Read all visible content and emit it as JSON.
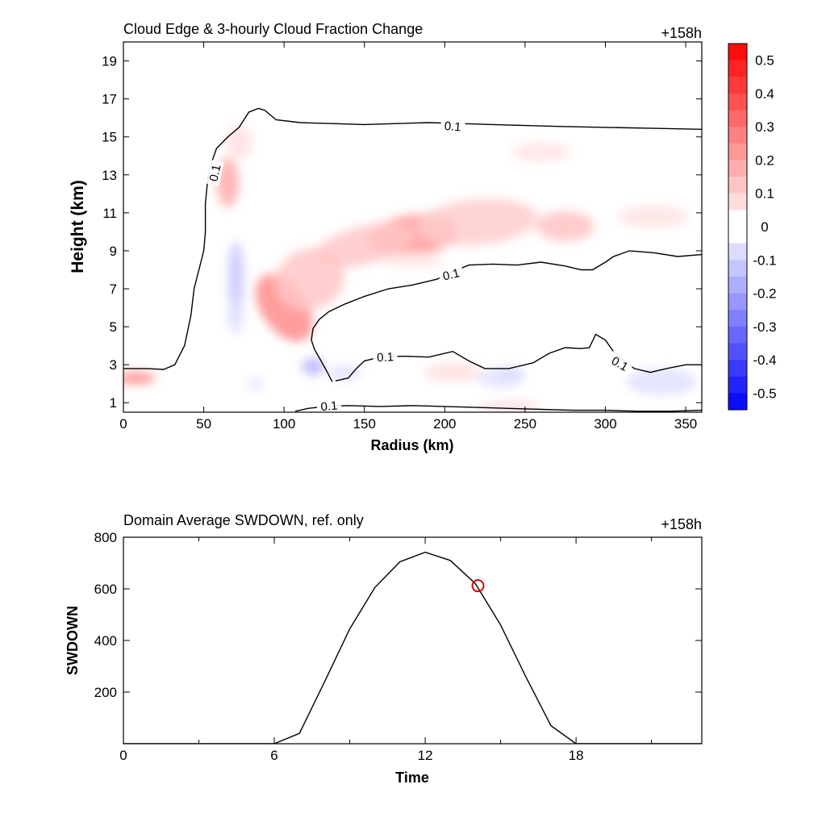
{
  "chart_data": [
    {
      "type": "heatmap",
      "title": "Cloud Edge & 3-hourly Cloud Fraction Change",
      "time_label": "+158h",
      "xlabel": "Radius (km)",
      "ylabel": "Height (km)",
      "xlim": [
        0,
        360
      ],
      "ylim": [
        0.5,
        20
      ],
      "x_ticks": [
        0,
        50,
        100,
        150,
        200,
        250,
        300,
        350
      ],
      "y_ticks": [
        1,
        3,
        5,
        7,
        9,
        11,
        13,
        15,
        17,
        19
      ],
      "colorbar": {
        "min": -0.55,
        "max": 0.55,
        "step": 0.05,
        "ticks": [
          0.5,
          0.4,
          0.3,
          0.2,
          0.1,
          0,
          -0.1,
          -0.2,
          -0.3,
          -0.4,
          -0.5
        ],
        "tick_labels": [
          "0.5",
          "0.4",
          "0.3",
          "0.2",
          "0.1",
          "0",
          "-0.1",
          "-0.2",
          "-0.3",
          "-0.4",
          "-0.5"
        ],
        "pos_color": "#ff0000",
        "neg_color": "#0000ff"
      },
      "contour_level_label": "0.1",
      "contours": [
        {
          "name": "upper-envelope",
          "points": [
            [
              0,
              2.8
            ],
            [
              15,
              2.8
            ],
            [
              25,
              2.75
            ],
            [
              32,
              3.0
            ],
            [
              38,
              4.0
            ],
            [
              42,
              5.6
            ],
            [
              44,
              7.0
            ],
            [
              47,
              8.0
            ],
            [
              50,
              9.0
            ],
            [
              51,
              10.0
            ],
            [
              51,
              11.5
            ],
            [
              53,
              13.2
            ],
            [
              58,
              14.4
            ],
            [
              65,
              15.0
            ],
            [
              72,
              15.5
            ],
            [
              78,
              16.3
            ],
            [
              84,
              16.5
            ],
            [
              88,
              16.4
            ],
            [
              95,
              15.9
            ],
            [
              110,
              15.75
            ],
            [
              130,
              15.7
            ],
            [
              150,
              15.65
            ],
            [
              170,
              15.7
            ],
            [
              190,
              15.75
            ],
            [
              210,
              15.7
            ],
            [
              230,
              15.65
            ],
            [
              250,
              15.6
            ],
            [
              270,
              15.55
            ],
            [
              300,
              15.5
            ],
            [
              330,
              15.45
            ],
            [
              360,
              15.4
            ]
          ]
        },
        {
          "name": "inner-outflow",
          "points": [
            [
              130,
              2.1
            ],
            [
              127,
              2.6
            ],
            [
              123,
              3.2
            ],
            [
              119,
              3.8
            ],
            [
              117,
              4.3
            ],
            [
              118,
              4.9
            ],
            [
              122,
              5.4
            ],
            [
              128,
              5.8
            ],
            [
              138,
              6.2
            ],
            [
              150,
              6.6
            ],
            [
              165,
              7.0
            ],
            [
              180,
              7.2
            ],
            [
              195,
              7.5
            ],
            [
              205,
              7.9
            ],
            [
              215,
              8.25
            ],
            [
              230,
              8.3
            ],
            [
              245,
              8.25
            ],
            [
              260,
              8.4
            ],
            [
              275,
              8.2
            ],
            [
              285,
              8.0
            ],
            [
              292,
              8.0
            ],
            [
              300,
              8.4
            ],
            [
              305,
              8.7
            ],
            [
              315,
              9.0
            ],
            [
              330,
              8.9
            ],
            [
              345,
              8.7
            ],
            [
              360,
              8.8
            ]
          ]
        },
        {
          "name": "lower-layer",
          "points": [
            [
              132,
              2.15
            ],
            [
              140,
              2.3
            ],
            [
              145,
              2.8
            ],
            [
              150,
              3.2
            ],
            [
              160,
              3.4
            ],
            [
              175,
              3.45
            ],
            [
              190,
              3.4
            ],
            [
              205,
              3.7
            ],
            [
              215,
              3.2
            ],
            [
              225,
              2.8
            ],
            [
              240,
              2.8
            ],
            [
              255,
              3.1
            ],
            [
              265,
              3.6
            ],
            [
              275,
              3.9
            ],
            [
              285,
              3.85
            ],
            [
              290,
              3.9
            ],
            [
              294,
              4.6
            ],
            [
              300,
              4.3
            ],
            [
              305,
              3.7
            ],
            [
              312,
              3.2
            ],
            [
              318,
              2.8
            ],
            [
              328,
              2.6
            ],
            [
              338,
              2.8
            ],
            [
              350,
              3.0
            ],
            [
              360,
              3.0
            ]
          ]
        },
        {
          "name": "bottom-layer",
          "points": [
            [
              107,
              0.55
            ],
            [
              115,
              0.7
            ],
            [
              125,
              0.8
            ],
            [
              140,
              0.85
            ],
            [
              160,
              0.8
            ],
            [
              180,
              0.85
            ],
            [
              200,
              0.8
            ],
            [
              220,
              0.75
            ],
            [
              240,
              0.7
            ],
            [
              260,
              0.65
            ],
            [
              280,
              0.6
            ],
            [
              300,
              0.6
            ],
            [
              320,
              0.55
            ],
            [
              340,
              0.55
            ],
            [
              360,
              0.6
            ]
          ]
        }
      ],
      "contour_labels": [
        {
          "text": "0.1",
          "x": 205,
          "y": 15.55,
          "angle": 5
        },
        {
          "text": "0.1",
          "x": 57,
          "y": 13.1,
          "angle": -78
        },
        {
          "text": "0.1",
          "x": 204,
          "y": 7.75,
          "angle": -14
        },
        {
          "text": "0.1",
          "x": 163,
          "y": 3.4,
          "angle": -3
        },
        {
          "text": "0.1",
          "x": 309,
          "y": 3.05,
          "angle": 30
        },
        {
          "text": "0.1",
          "x": 128,
          "y": 0.82,
          "angle": -5
        }
      ],
      "anomalies": [
        {
          "x": 100,
          "y": 6.0,
          "sx": 14,
          "sy": 2.0,
          "value": 0.25,
          "rot": -35
        },
        {
          "x": 116,
          "y": 7.5,
          "sx": 22,
          "sy": 1.6,
          "value": 0.12,
          "rot": -22
        },
        {
          "x": 180,
          "y": 9.8,
          "sx": 28,
          "sy": 1.1,
          "value": 0.22,
          "rot": -8
        },
        {
          "x": 220,
          "y": 10.5,
          "sx": 38,
          "sy": 1.2,
          "value": 0.11,
          "rot": -5
        },
        {
          "x": 150,
          "y": 9.3,
          "sx": 32,
          "sy": 1.0,
          "value": 0.12,
          "rot": -14
        },
        {
          "x": 275,
          "y": 10.3,
          "sx": 18,
          "sy": 0.8,
          "value": 0.13,
          "rot": 0
        },
        {
          "x": 330,
          "y": 10.8,
          "sx": 22,
          "sy": 0.6,
          "value": 0.06,
          "rot": 0
        },
        {
          "x": 65,
          "y": 12.6,
          "sx": 7,
          "sy": 1.3,
          "value": 0.18,
          "rot": 0
        },
        {
          "x": 72,
          "y": 14.7,
          "sx": 8,
          "sy": 0.9,
          "value": 0.07,
          "rot": 0
        },
        {
          "x": 260,
          "y": 14.2,
          "sx": 18,
          "sy": 0.5,
          "value": 0.06,
          "rot": 0
        },
        {
          "x": 8,
          "y": 2.3,
          "sx": 12,
          "sy": 0.35,
          "value": 0.24,
          "rot": 0
        },
        {
          "x": 205,
          "y": 2.6,
          "sx": 18,
          "sy": 0.5,
          "value": 0.07,
          "rot": 0
        },
        {
          "x": 240,
          "y": 0.75,
          "sx": 20,
          "sy": 0.35,
          "value": 0.07,
          "rot": 0
        },
        {
          "x": 180,
          "y": 8.5,
          "sx": 20,
          "sy": 0.4,
          "value": 0.05,
          "rot": 0
        },
        {
          "x": 70,
          "y": 7.5,
          "sx": 5,
          "sy": 2.0,
          "value": -0.12,
          "rot": 0
        },
        {
          "x": 70,
          "y": 5.5,
          "sx": 5,
          "sy": 0.9,
          "value": -0.07,
          "rot": 0
        },
        {
          "x": 118,
          "y": 2.9,
          "sx": 7,
          "sy": 0.45,
          "value": -0.16,
          "rot": 0
        },
        {
          "x": 138,
          "y": 2.6,
          "sx": 10,
          "sy": 0.4,
          "value": -0.07,
          "rot": 0
        },
        {
          "x": 241,
          "y": 2.5,
          "sx": 8,
          "sy": 0.4,
          "value": -0.13,
          "rot": 0
        },
        {
          "x": 235,
          "y": 2.3,
          "sx": 14,
          "sy": 0.55,
          "value": -0.06,
          "rot": 0
        },
        {
          "x": 335,
          "y": 2.1,
          "sx": 22,
          "sy": 0.7,
          "value": -0.07,
          "rot": 0
        },
        {
          "x": 82,
          "y": 2.0,
          "sx": 5,
          "sy": 0.4,
          "value": -0.05,
          "rot": 0
        }
      ]
    },
    {
      "type": "line",
      "title": "Domain Average SWDOWN, ref. only",
      "time_label": "+158h",
      "xlabel": "Time",
      "ylabel": "SWDOWN",
      "xlim": [
        0,
        23
      ],
      "ylim": [
        0,
        800
      ],
      "x_ticks": [
        0,
        6,
        12,
        18
      ],
      "x_minor_ticks": [
        3,
        9,
        15,
        21
      ],
      "y_ticks": [
        200,
        400,
        600,
        800
      ],
      "series": [
        {
          "x": [
            0,
            1,
            2,
            3,
            4,
            5,
            6,
            7,
            8,
            9,
            10,
            11,
            12,
            13,
            14,
            15,
            16,
            17,
            18,
            19,
            20,
            21,
            22,
            23
          ],
          "values": [
            0,
            0,
            0,
            0,
            0,
            0,
            0,
            40,
            240,
            445,
            605,
            705,
            742,
            710,
            620,
            460,
            260,
            70,
            0,
            0,
            0,
            0,
            0,
            0
          ]
        }
      ],
      "marker": {
        "x": 14.1,
        "y": 612,
        "color": "#e00000"
      }
    }
  ]
}
